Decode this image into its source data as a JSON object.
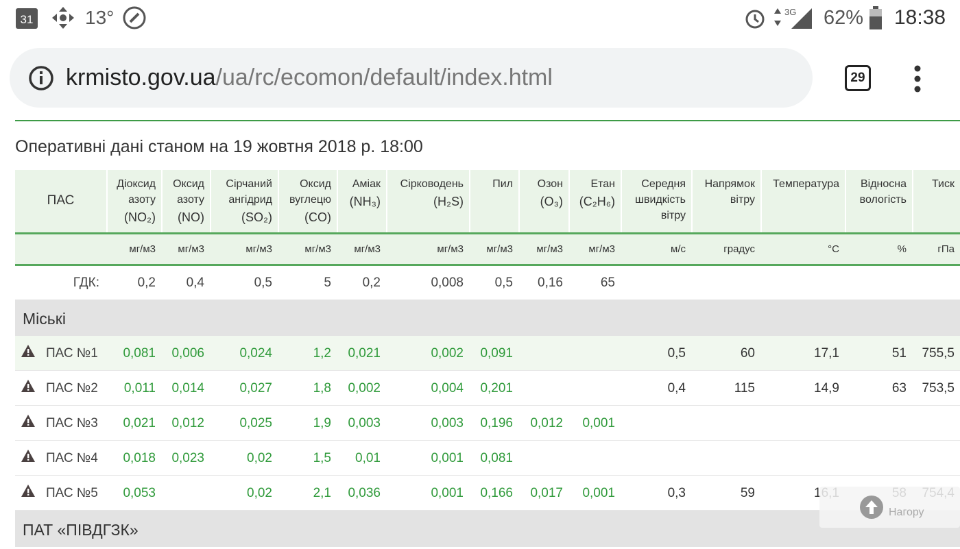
{
  "status_bar": {
    "date": "31",
    "temperature": "13°",
    "network": "3G",
    "battery": "62%",
    "time": "18:38"
  },
  "address_bar": {
    "host": "krmisto.gov.ua",
    "path": "/ua/rc/ecomon/default/index.html",
    "tab_count": "29"
  },
  "heading": "Оперативні дані станом на 19 жовтня 2018 р. 18:00",
  "table": {
    "columns": [
      {
        "name": "ПАС"
      },
      {
        "name": "Діоксид азоту",
        "formula": "(NO₂)",
        "unit": "мг/м3"
      },
      {
        "name": "Оксид азоту",
        "formula": "(NO)",
        "unit": "мг/м3"
      },
      {
        "name": "Сірчаний ангідрид",
        "formula": "(SO₂)",
        "unit": "мг/м3"
      },
      {
        "name": "Оксид вуглецю",
        "formula": "(CO)",
        "unit": "мг/м3"
      },
      {
        "name": "Аміак",
        "formula": "(NH₃)",
        "unit": "мг/м3"
      },
      {
        "name": "Сірководень",
        "formula": "(H₂S)",
        "unit": "мг/м3"
      },
      {
        "name": "Пил",
        "unit": "мг/м3"
      },
      {
        "name": "Озон",
        "formula": "(O₃)",
        "unit": "мг/м3"
      },
      {
        "name": "Етан",
        "formula": "(C₂H₆)",
        "unit": "мг/м3"
      },
      {
        "name": "Середня швидкість вітру",
        "unit": "м/с"
      },
      {
        "name": "Напрямок вітру",
        "unit": "градус"
      },
      {
        "name": "Температура",
        "unit": "°C"
      },
      {
        "name": "Відносна вологість",
        "unit": "%"
      },
      {
        "name": "Тиск",
        "unit": "гПа"
      }
    ],
    "limit_row": {
      "label": "ГДК:",
      "values": [
        "0,2",
        "0,4",
        "0,5",
        "5",
        "0,2",
        "0,008",
        "0,5",
        "0,16",
        "65",
        null,
        null,
        null,
        null,
        null
      ]
    },
    "groups": [
      {
        "title": "Міські",
        "rows": [
          {
            "station": "ПАС №1",
            "values": [
              "0,081",
              "0,006",
              "0,024",
              "1,2",
              "0,021",
              "0,002",
              "0,091",
              null,
              null,
              "0,5",
              "60",
              "17,1",
              "51",
              "755,5"
            ]
          },
          {
            "station": "ПАС №2",
            "values": [
              "0,011",
              "0,014",
              "0,027",
              "1,8",
              "0,002",
              "0,004",
              "0,201",
              null,
              null,
              "0,4",
              "115",
              "14,9",
              "63",
              "753,5"
            ]
          },
          {
            "station": "ПАС №3",
            "values": [
              "0,021",
              "0,012",
              "0,025",
              "1,9",
              "0,003",
              "0,003",
              "0,196",
              "0,012",
              "0,001",
              null,
              null,
              null,
              null,
              null
            ]
          },
          {
            "station": "ПАС №4",
            "values": [
              "0,018",
              "0,023",
              "0,02",
              "1,5",
              "0,01",
              "0,001",
              "0,081",
              null,
              null,
              null,
              null,
              null,
              null,
              null
            ]
          },
          {
            "station": "ПАС №5",
            "values": [
              "0,053",
              null,
              "0,02",
              "2,1",
              "0,036",
              "0,001",
              "0,166",
              "0,017",
              "0,001",
              "0,3",
              "59",
              "16,1",
              "58",
              "754,4"
            ]
          }
        ]
      },
      {
        "title": "ПАТ «ПІВДГЗК»"
      }
    ]
  },
  "scroll_top_button": "Нагору"
}
